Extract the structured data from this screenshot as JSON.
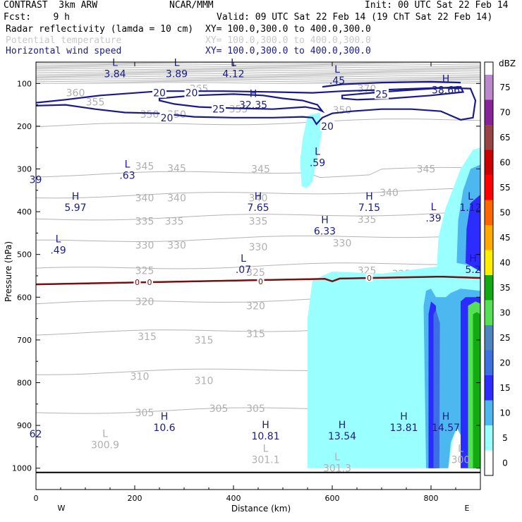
{
  "header": {
    "model": "CONTRAST  3km ARW",
    "center": "NCAR/MMM",
    "init": "Init: 00 UTC Sat 22 Feb 14",
    "fcst": "Fcst:    9 h",
    "valid": "Valid: 09 UTC Sat 22 Feb 14 (19 ChT Sat 22 Feb 14)",
    "fields": [
      {
        "label": "Radar reflectivity (lamda = 10 cm)",
        "xy": "XY= 100.0,300.0 to 400.0,300.0",
        "style": "black"
      },
      {
        "label": "Potential temperature",
        "xy": "XY= 100.0,300.0 to 400.0,300.0",
        "style": "gray"
      },
      {
        "label": "Horizontal wind speed",
        "xy": "XY= 100.0,300.0 to 400.0,300.0",
        "style": "blue"
      }
    ]
  },
  "chart_data": {
    "type": "cross-section contour",
    "xlabel": "Distance (km)",
    "ylabel": "Pressure (hPa)",
    "x_ticks": [
      0,
      200,
      400,
      600,
      800
    ],
    "xlim": [
      0,
      900
    ],
    "y_ticks": [
      100,
      200,
      300,
      400,
      500,
      600,
      700,
      800,
      900,
      1000
    ],
    "ylim": [
      50,
      1050
    ],
    "x_end_labels": [
      "W",
      "E"
    ],
    "colorbar": {
      "unit": "dBZ",
      "levels": [
        0,
        5,
        10,
        15,
        20,
        25,
        30,
        35,
        40,
        45,
        50,
        55,
        60,
        65,
        70,
        75
      ],
      "colors": [
        "#ffffff",
        "#99ffff",
        "#4db8f0",
        "#2c2cff",
        "#3c6fe0",
        "#4d85c0",
        "#55e055",
        "#11aa11",
        "#ffee00",
        "#ffaa00",
        "#ff6600",
        "#ff0000",
        "#cc0000",
        "#994444",
        "#882299",
        "#bb88cc"
      ]
    },
    "wind_contours": [
      20,
      25
    ],
    "theta_contours": [
      300,
      305,
      310,
      315,
      320,
      325,
      330,
      335,
      340,
      345,
      350,
      355,
      360,
      365,
      370
    ],
    "freezing_level_label": "0",
    "wind_extrema": [
      {
        "type": "L",
        "value": "3.84",
        "x": 160,
        "p": 62
      },
      {
        "type": "L",
        "value": "3.89",
        "x": 285,
        "p": 62
      },
      {
        "type": "L",
        "value": "4.12",
        "x": 400,
        "p": 62
      },
      {
        "type": "L",
        "value": ".45",
        "x": 610,
        "p": 78
      },
      {
        "type": "H",
        "value": "38.66",
        "x": 830,
        "p": 100
      },
      {
        "type": "H",
        "value": "32.35",
        "x": 440,
        "p": 135
      },
      {
        "type": "L",
        "value": ".59",
        "x": 570,
        "p": 270
      },
      {
        "type": "L",
        "value": ".63",
        "x": 185,
        "p": 300
      },
      {
        "type": "H",
        "value": "5.97",
        "x": 80,
        "p": 375
      },
      {
        "type": "H",
        "value": "7.65",
        "x": 450,
        "p": 375
      },
      {
        "type": "H",
        "value": "7.15",
        "x": 675,
        "p": 375
      },
      {
        "type": "L",
        "value": ".39",
        "x": 805,
        "p": 400
      },
      {
        "type": "L",
        "value": "1.12",
        "x": 880,
        "p": 375
      },
      {
        "type": "H",
        "value": "6.33",
        "x": 585,
        "p": 430
      },
      {
        "type": "L",
        "value": ".49",
        "x": 45,
        "p": 475
      },
      {
        "type": "L",
        "value": ".07",
        "x": 420,
        "p": 520
      },
      {
        "type": "H",
        "value": "5.2",
        "x": 885,
        "p": 520
      },
      {
        "type": "H",
        "value": "10.6",
        "x": 260,
        "p": 890
      },
      {
        "type": "H",
        "value": "10.81",
        "x": 465,
        "p": 910
      },
      {
        "type": "H",
        "value": "13.54",
        "x": 620,
        "p": 910
      },
      {
        "type": "H",
        "value": "13.81",
        "x": 745,
        "p": 890
      },
      {
        "type": "H",
        "value": "14.57",
        "x": 830,
        "p": 890
      }
    ],
    "theta_extrema": [
      {
        "type": "L",
        "value": "300.9",
        "x": 140,
        "p": 930
      },
      {
        "type": "L",
        "value": "301.1",
        "x": 465,
        "p": 965
      },
      {
        "type": "L",
        "value": "301.3",
        "x": 610,
        "p": 985
      },
      {
        "type": "L",
        "value": "300",
        "x": 860,
        "p": 965
      }
    ],
    "edge_labels": [
      {
        "value": "39",
        "x": 5,
        "p": 325
      },
      {
        "value": "62",
        "x": 5,
        "p": 920
      }
    ]
  }
}
